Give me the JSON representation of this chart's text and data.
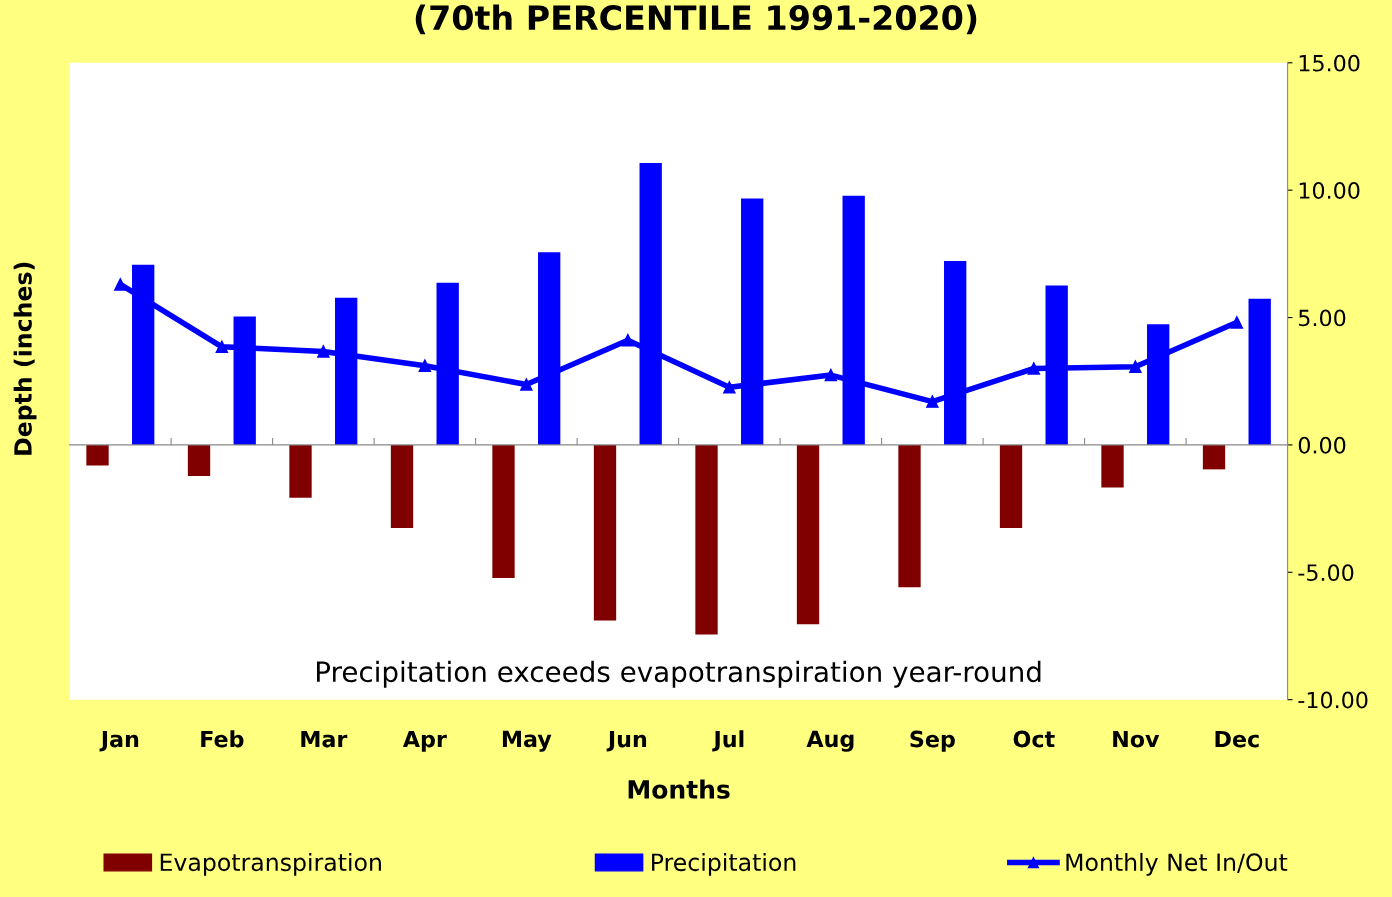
{
  "chart_data": {
    "type": "bar",
    "title": "(70th PERCENTILE 1991-2020)",
    "xlabel": "Months",
    "ylabel": "Depth (inches)",
    "categories": [
      "Jan",
      "Feb",
      "Mar",
      "Apr",
      "May",
      "Jun",
      "Jul",
      "Aug",
      "Sep",
      "Oct",
      "Nov",
      "Dec"
    ],
    "series": [
      {
        "name": "Evapotranspiration",
        "color": "#800000",
        "values": [
          -0.81,
          -1.22,
          -2.07,
          -3.26,
          -5.22,
          -6.89,
          -7.44,
          -7.04,
          -5.59,
          -3.26,
          -1.67,
          -0.96
        ]
      },
      {
        "name": "Precipitation",
        "color": "#0000ff",
        "values": [
          7.07,
          5.04,
          5.78,
          6.37,
          7.56,
          11.07,
          9.67,
          9.78,
          7.22,
          6.26,
          4.74,
          5.74
        ]
      },
      {
        "name": "Monthly Net In/Out",
        "type": "line",
        "color": "#0000ff",
        "marker": "triangle",
        "values": [
          6.3,
          3.85,
          3.67,
          3.11,
          2.37,
          4.11,
          2.26,
          2.74,
          1.7,
          3.0,
          3.07,
          4.81
        ]
      }
    ],
    "ylim": [
      -10,
      15
    ],
    "yticks": [
      {
        "value": -10,
        "label": "-10.00"
      },
      {
        "value": -5,
        "label": "-5.00"
      },
      {
        "value": 0,
        "label": "0.00"
      },
      {
        "value": 5,
        "label": "5.00"
      },
      {
        "value": 10,
        "label": "10.00"
      },
      {
        "value": 15,
        "label": "15.00"
      }
    ],
    "annotations": [
      "Precipitation exceeds evapotranspiration year-round"
    ],
    "legend": "bottom"
  }
}
